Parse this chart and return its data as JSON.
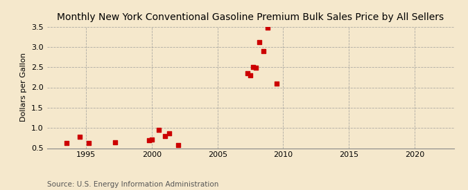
{
  "title": "Monthly New York Conventional Gasoline Premium Bulk Sales Price by All Sellers",
  "ylabel": "Dollars per Gallon",
  "source": "Source: U.S. Energy Information Administration",
  "background_color": "#f5e8cc",
  "plot_background_color": "#f5e8cc",
  "marker_color": "#cc0000",
  "marker_size": 4,
  "marker_style": "s",
  "xlim": [
    1992,
    2023
  ],
  "ylim": [
    0.5,
    3.5
  ],
  "xticks": [
    1995,
    2000,
    2005,
    2010,
    2015,
    2020
  ],
  "yticks": [
    0.5,
    1.0,
    1.5,
    2.0,
    2.5,
    3.0,
    3.5
  ],
  "title_fontsize": 10,
  "title_fontweight": "normal",
  "ylabel_fontsize": 8,
  "tick_fontsize": 8,
  "source_fontsize": 7.5,
  "data_points": [
    [
      1993.5,
      0.62
    ],
    [
      1994.5,
      0.78
    ],
    [
      1995.2,
      0.62
    ],
    [
      1997.2,
      0.65
    ],
    [
      1999.8,
      0.7
    ],
    [
      2000.0,
      0.72
    ],
    [
      2000.5,
      0.95
    ],
    [
      2001.0,
      0.8
    ],
    [
      2001.3,
      0.86
    ],
    [
      2002.0,
      0.57
    ],
    [
      2007.3,
      2.35
    ],
    [
      2007.5,
      2.3
    ],
    [
      2007.7,
      2.5
    ],
    [
      2007.9,
      2.48
    ],
    [
      2008.2,
      3.12
    ],
    [
      2008.5,
      2.89
    ],
    [
      2008.8,
      3.47
    ],
    [
      2009.5,
      2.1
    ]
  ]
}
